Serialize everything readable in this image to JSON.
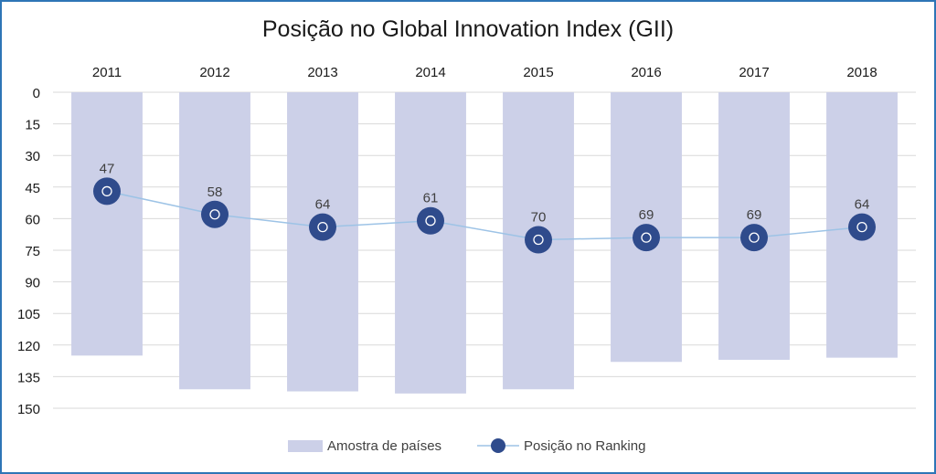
{
  "chart_data": {
    "type": "bar",
    "title": "Posição no Global Innovation Index (GII)",
    "categories": [
      "2011",
      "2012",
      "2013",
      "2014",
      "2015",
      "2016",
      "2017",
      "2018"
    ],
    "ylim": [
      0,
      150
    ],
    "yticks": [
      0,
      15,
      30,
      45,
      60,
      75,
      90,
      105,
      120,
      135,
      150
    ],
    "y_reversed": true,
    "grid": true,
    "legend_position": "bottom",
    "series": [
      {
        "name": "Amostra de países",
        "kind": "bar",
        "color": "#ccd0e8",
        "values": [
          125,
          141,
          142,
          143,
          141,
          128,
          127,
          126
        ]
      },
      {
        "name": "Posição no Ranking",
        "kind": "line",
        "color": "#2f4b8c",
        "line_color": "#9dc3e6",
        "values": [
          47,
          58,
          64,
          61,
          70,
          69,
          69,
          64
        ]
      }
    ]
  }
}
